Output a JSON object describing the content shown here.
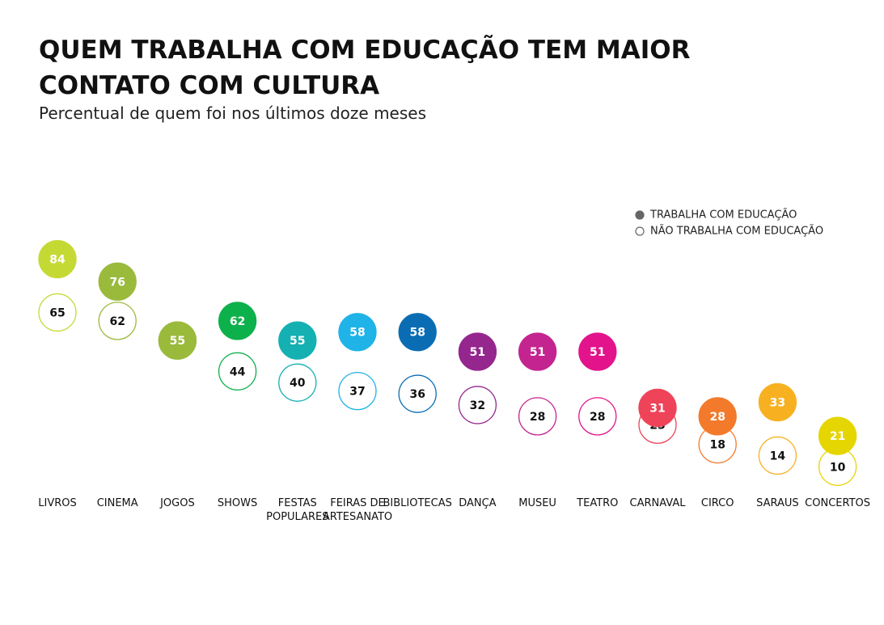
{
  "chart_data": {
    "type": "dot",
    "title": "QUEM TRABALHA COM EDUCAÇÃO TEM MAIOR CONTATO COM CULTURA",
    "subtitle": "Percentual de quem foi nos últimos doze meses",
    "categories": [
      "LIVROS",
      "CINEMA",
      "JOGOS",
      "SHOWS",
      "FESTAS POPULARES",
      "FEIRAS DE ARTESANATO",
      "BIBLIOTECAS",
      "DANÇA",
      "MUSEU",
      "TEATRO",
      "CARNAVAL",
      "CIRCO",
      "SARAUS",
      "CONCERTOS"
    ],
    "colors": [
      "#c5d935",
      "#9aba3c",
      "#9aba3c",
      "#0db14b",
      "#15b0b2",
      "#1fb3e8",
      "#0a6db4",
      "#95268e",
      "#c42490",
      "#e3138c",
      "#ee4359",
      "#f37a2a",
      "#f7b120",
      "#e5d500"
    ],
    "series": [
      {
        "name": "TRABALHA COM EDUCAÇÃO",
        "color": "#666666",
        "values": [
          84,
          76,
          55,
          62,
          55,
          58,
          58,
          51,
          51,
          51,
          31,
          28,
          33,
          21
        ]
      },
      {
        "name": "NÃO TRABALHA COM EDUCAÇÃO",
        "color": "#666666",
        "values": [
          65,
          62,
          55,
          44,
          40,
          37,
          36,
          32,
          28,
          28,
          25,
          18,
          14,
          10
        ]
      }
    ],
    "ylim": [
      0,
      100
    ]
  }
}
